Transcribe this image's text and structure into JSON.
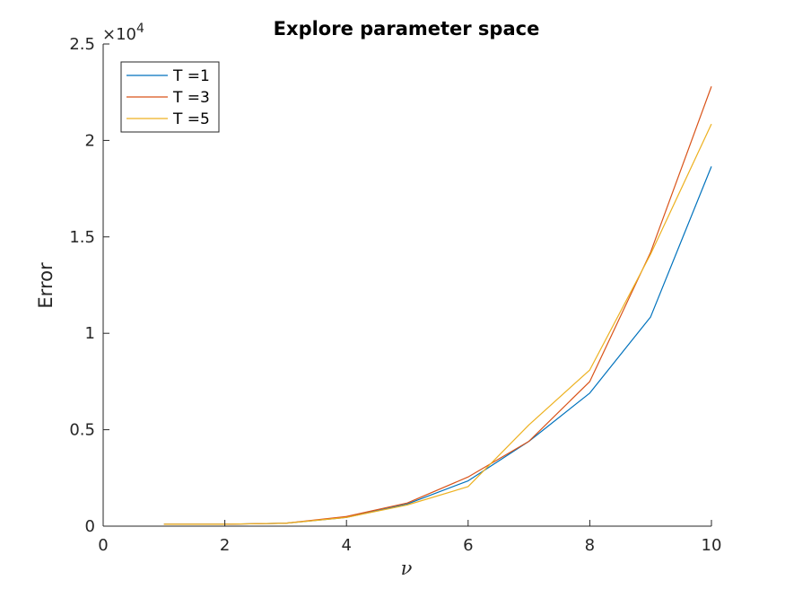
{
  "chart_data": {
    "type": "line",
    "title": "Explore parameter space",
    "xlabel": "ν",
    "ylabel": "Error",
    "y_exponent_label": "×10",
    "y_exponent_power": "4",
    "xlim": [
      0,
      10
    ],
    "ylim": [
      0,
      2.5
    ],
    "x_ticks": [
      0,
      2,
      4,
      6,
      8,
      10
    ],
    "x_tick_labels": [
      "0",
      "2",
      "4",
      "6",
      "8",
      "10"
    ],
    "y_ticks": [
      0,
      0.5,
      1,
      1.5,
      2,
      2.5
    ],
    "y_tick_labels": [
      "0",
      "0.5",
      "1",
      "1.5",
      "2",
      "2.5"
    ],
    "grid": false,
    "legend_position": "top-left",
    "x": [
      1,
      2,
      3,
      4,
      5,
      6,
      7,
      8,
      9,
      10
    ],
    "series": [
      {
        "name": "T =1",
        "color": "#0072BD",
        "values": [
          0.01,
          0.01,
          0.015,
          0.045,
          0.115,
          0.235,
          0.44,
          0.69,
          1.085,
          1.865
        ]
      },
      {
        "name": "T =3",
        "color": "#D95319",
        "values": [
          0.01,
          0.01,
          0.015,
          0.05,
          0.12,
          0.255,
          0.44,
          0.75,
          1.42,
          2.28
        ]
      },
      {
        "name": "T =5",
        "color": "#EDB120",
        "values": [
          0.01,
          0.01,
          0.015,
          0.045,
          0.11,
          0.205,
          0.525,
          0.81,
          1.41,
          2.085
        ]
      }
    ]
  }
}
